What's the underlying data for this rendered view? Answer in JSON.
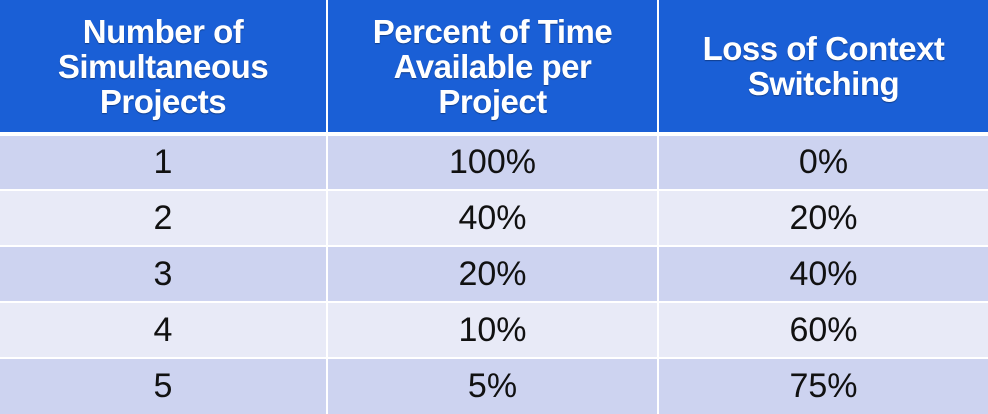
{
  "chart_data": {
    "type": "table",
    "columns": [
      "Number of Simultaneous Projects",
      "Percent of Time Available per Project",
      "Loss of Context Switching"
    ],
    "header_lines": [
      [
        "Number of",
        "Simultaneous",
        "Projects"
      ],
      [
        "Percent of Time",
        "Available per",
        "Project"
      ],
      [
        "Loss of Context",
        "Switching"
      ]
    ],
    "rows": [
      [
        "1",
        "100%",
        "0%"
      ],
      [
        "2",
        "40%",
        "20%"
      ],
      [
        "3",
        "20%",
        "40%"
      ],
      [
        "4",
        "10%",
        "60%"
      ],
      [
        "5",
        "5%",
        "75%"
      ]
    ]
  },
  "colors": {
    "header_bg": "#1a5fd6",
    "row_odd_bg": "#cdd3f0",
    "row_even_bg": "#e8eaf7"
  }
}
